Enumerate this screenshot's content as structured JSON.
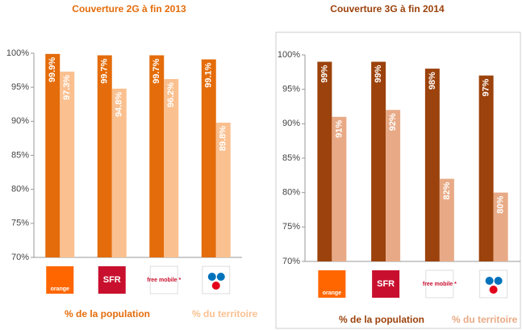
{
  "chart_data": [
    {
      "type": "bar",
      "title": "Couverture 2G à fin 2013",
      "categories": [
        "orange",
        "SFR",
        "free mobile *",
        null
      ],
      "series": [
        {
          "name": "% de la population",
          "color": "#e46c0a",
          "values": [
            99.9,
            99.7,
            99.7,
            99.1
          ],
          "value_labels": [
            "99.9%",
            "99.7%",
            "99.7%",
            "99.1%"
          ]
        },
        {
          "name": "% du territoire",
          "color": "#fac090",
          "values": [
            97.3,
            94.8,
            96.2,
            89.8
          ],
          "value_labels": [
            "97.3%",
            "94.8%",
            "96.2%",
            "89.8%"
          ]
        }
      ],
      "ylim": [
        70,
        100
      ],
      "yticks": [
        {
          "value": 70,
          "label": "70%"
        },
        {
          "value": 75,
          "label": "75%"
        },
        {
          "value": 80,
          "label": "80%"
        },
        {
          "value": 85,
          "label": "85%"
        },
        {
          "value": 90,
          "label": "90%"
        },
        {
          "value": 95,
          "label": "95%"
        },
        {
          "value": 100,
          "label": "100%"
        }
      ]
    },
    {
      "type": "bar",
      "title": "Couverture 3G à fin 2014",
      "categories": [
        "orange",
        "SFR",
        "free mobile *",
        null
      ],
      "series": [
        {
          "name": "% de la population",
          "color": "#9c420c",
          "values": [
            99,
            99,
            98,
            97
          ],
          "value_labels": [
            "99%",
            "99%",
            "98%",
            "97%"
          ]
        },
        {
          "name": "% du territoire",
          "color": "#e8aa86",
          "values": [
            91,
            92,
            82,
            80
          ],
          "value_labels": [
            "91%",
            "92%",
            "82%",
            "80%"
          ]
        }
      ],
      "ylim": [
        70,
        100
      ],
      "yticks": [
        {
          "value": 70,
          "label": "70%"
        },
        {
          "value": 75,
          "label": "75%"
        },
        {
          "value": 80,
          "label": "80%"
        },
        {
          "value": 85,
          "label": "85%"
        },
        {
          "value": 90,
          "label": "90%"
        },
        {
          "value": 95,
          "label": "95%"
        },
        {
          "value": 100,
          "label": "100%"
        }
      ]
    }
  ]
}
